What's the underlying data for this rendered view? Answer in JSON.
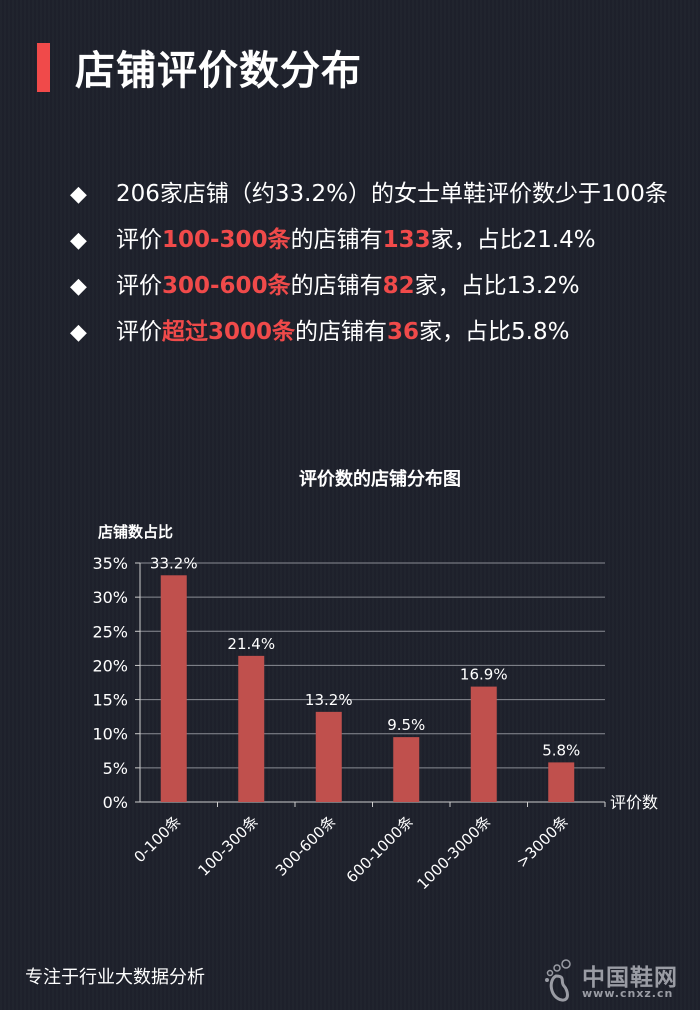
{
  "title": "店铺评价数分布",
  "bullets": [
    {
      "parts": [
        {
          "t": "206家店铺（约33.2%）的女士单鞋评价数少于100条",
          "h": false
        }
      ]
    },
    {
      "parts": [
        {
          "t": "评价",
          "h": false
        },
        {
          "t": "100-300条",
          "h": true
        },
        {
          "t": "的店铺有",
          "h": false
        },
        {
          "t": "133",
          "h": true
        },
        {
          "t": "家，占比21.4%",
          "h": false
        }
      ]
    },
    {
      "parts": [
        {
          "t": "评价",
          "h": false
        },
        {
          "t": "300-600条",
          "h": true
        },
        {
          "t": "的店铺有",
          "h": false
        },
        {
          "t": "82",
          "h": true
        },
        {
          "t": "家，占比13.2%",
          "h": false
        }
      ]
    },
    {
      "parts": [
        {
          "t": "评价",
          "h": false
        },
        {
          "t": "超过3000条",
          "h": true
        },
        {
          "t": "的店铺有",
          "h": false
        },
        {
          "t": "36",
          "h": true
        },
        {
          "t": "家，占比5.8%",
          "h": false
        }
      ]
    }
  ],
  "bullet_icon": "diamond-icon",
  "colors": {
    "accent": "#f04a4a",
    "bar": "#c0504d",
    "background": "#1e212c"
  },
  "chart_data": {
    "type": "bar",
    "title": "评价数的店铺分布图",
    "ylabel": "店铺数占比",
    "xlabel": "评价数",
    "categories": [
      "0-100条",
      "100-300条",
      "300-600条",
      "600-1000条",
      "1000-3000条",
      ">3000条"
    ],
    "values": [
      33.2,
      21.4,
      13.2,
      9.5,
      16.9,
      5.8
    ],
    "data_labels": [
      "33.2%",
      "21.4%",
      "13.2%",
      "9.5%",
      "16.9%",
      "5.8%"
    ],
    "ylim": [
      0,
      35
    ],
    "yticks": [
      "0%",
      "5%",
      "10%",
      "15%",
      "20%",
      "25%",
      "30%",
      "35%"
    ],
    "grid": true
  },
  "footer": "专注于行业大数据分析",
  "logo": {
    "name": "中国鞋网",
    "url": "www.cnxz.cn"
  }
}
